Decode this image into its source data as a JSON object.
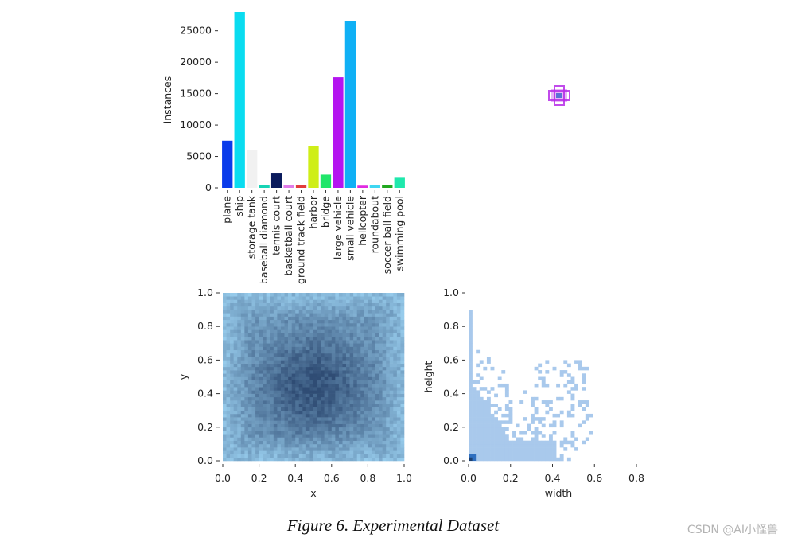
{
  "chart_data": [
    {
      "type": "bar",
      "ylabel": "instances",
      "ylim": [
        0,
        28000
      ],
      "yticks": [
        0,
        5000,
        10000,
        15000,
        20000,
        25000
      ],
      "categories": [
        "plane",
        "ship",
        "storage tank",
        "baseball diamond",
        "tennis court",
        "basketball court",
        "ground track field",
        "harbor",
        "bridge",
        "large vehicle",
        "small vehicle",
        "helicopter",
        "roundabout",
        "soccer ball field",
        "swimming pool"
      ],
      "values": [
        7500,
        28000,
        6000,
        500,
        2400,
        450,
        400,
        6600,
        2100,
        17600,
        26500,
        350,
        450,
        400,
        1600
      ],
      "colors": [
        "#0a3bea",
        "#0adcf0",
        "#f1f1f1",
        "#17d4b5",
        "#0a1a5c",
        "#e07be9",
        "#e23c3c",
        "#cfee18",
        "#20e66a",
        "#b414f0",
        "#0fb0f5",
        "#e02ae0",
        "#3fd7f2",
        "#21a81f",
        "#1fe8ac"
      ]
    },
    {
      "type": "scatter",
      "label": "box overlay",
      "center": [
        0.5,
        0.5
      ],
      "color": "#b62be8"
    },
    {
      "type": "heatmap",
      "xlabel": "x",
      "ylabel": "y",
      "xlim": [
        0,
        1.0
      ],
      "ylim": [
        0,
        1.0
      ],
      "xticks": [
        "0.0",
        "0.2",
        "0.4",
        "0.6",
        "0.8",
        "1.0"
      ],
      "yticks": [
        "0.0",
        "0.2",
        "0.4",
        "0.6",
        "0.8",
        "1.0"
      ],
      "bins": 50,
      "color_light": "#9cd2f2",
      "color_dark": "#2f4c74",
      "description_peak": [
        0.5,
        0.45
      ]
    },
    {
      "type": "heatmap",
      "xlabel": "width",
      "ylabel": "height",
      "xlim": [
        0,
        0.87
      ],
      "ylim": [
        0,
        1.0
      ],
      "xticks": [
        "0.0",
        "0.2",
        "0.4",
        "0.6",
        "0.8"
      ],
      "yticks": [
        "0.0",
        "0.2",
        "0.4",
        "0.6",
        "0.8",
        "1.0"
      ],
      "bins": 50,
      "color_fill": "#a9c9ec",
      "color_peak": "#2f6fbf"
    }
  ],
  "caption": "Figure 6. Experimental Dataset",
  "watermark": "CSDN @AI小怪兽"
}
